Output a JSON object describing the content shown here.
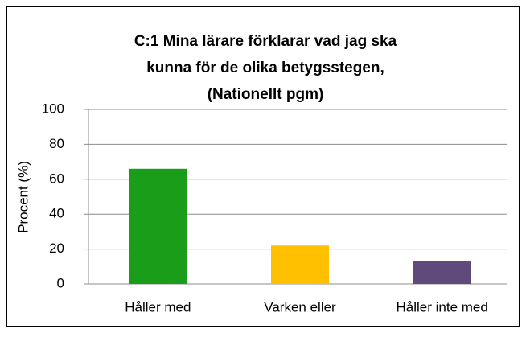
{
  "chart_data": {
    "type": "bar",
    "title": [
      "C:1  Mina lärare förklarar vad jag ska",
      "kunna för de olika betygsstegen,",
      "(Nationellt pgm)"
    ],
    "y_label": "Procent (%)",
    "categories": [
      "Håller med",
      "Varken eller",
      "Håller inte med"
    ],
    "values": [
      66,
      22,
      13
    ],
    "colors": [
      "#1a9e1a",
      "#ffc000",
      "#604a7b"
    ],
    "ylim": [
      0,
      100
    ],
    "yticks": [
      0,
      20,
      40,
      60,
      80,
      100
    ],
    "grid": true
  }
}
